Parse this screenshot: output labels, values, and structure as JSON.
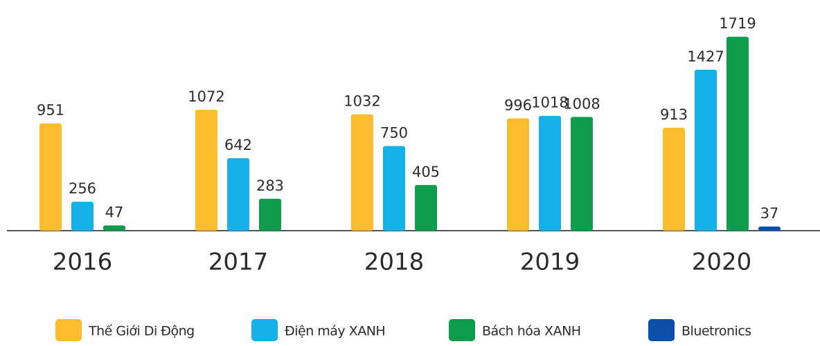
{
  "chart_data": {
    "type": "bar",
    "categories": [
      "2016",
      "2017",
      "2018",
      "2019",
      "2020"
    ],
    "series": [
      {
        "name": "Thế Giới Di Động",
        "color": "#fbbd2e",
        "values": [
          951,
          1072,
          1032,
          996,
          913
        ]
      },
      {
        "name": "Điện máy XANH",
        "color": "#14b0ea",
        "values": [
          256,
          642,
          750,
          1018,
          1427
        ]
      },
      {
        "name": "Bách hóa XANH",
        "color": "#0e9b4b",
        "values": [
          47,
          283,
          405,
          1008,
          1719
        ]
      },
      {
        "name": "Bluetronics",
        "color": "#0b4fa8",
        "values": [
          null,
          null,
          null,
          null,
          37
        ]
      }
    ],
    "ylim": [
      0,
      1800
    ],
    "legend": "bottom"
  }
}
